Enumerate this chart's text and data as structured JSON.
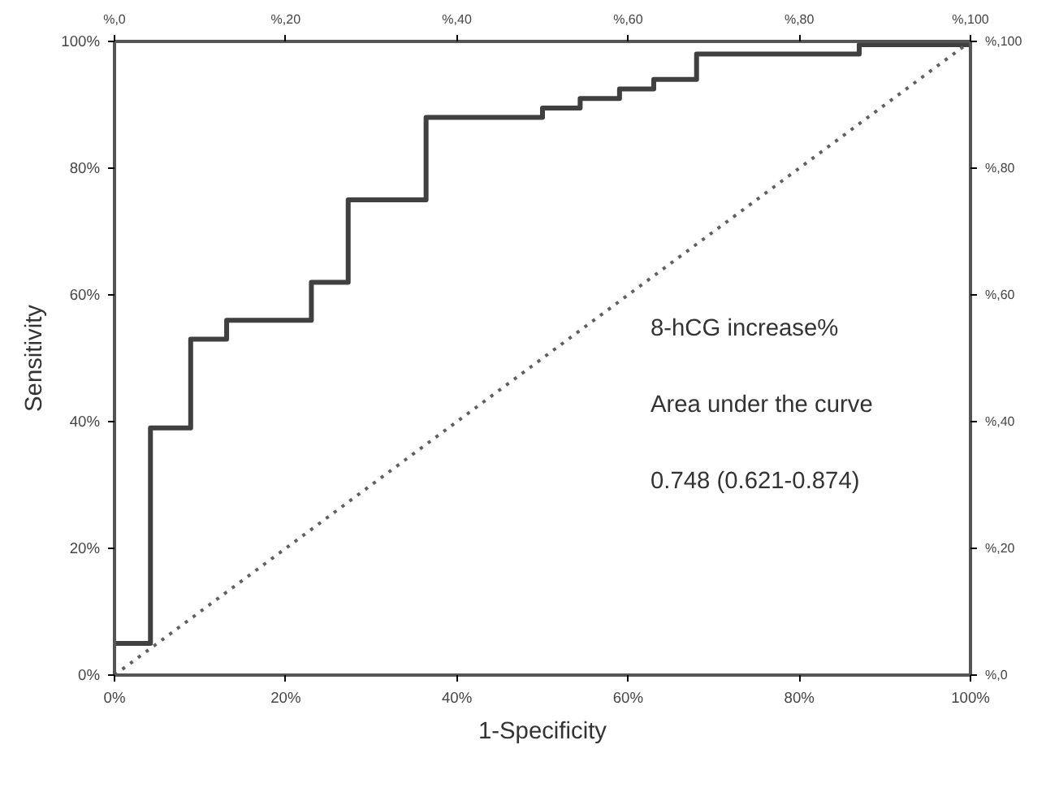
{
  "chart_data": {
    "type": "line",
    "xlabel": "1-Specificity",
    "ylabel": "Sensitivity",
    "series": [
      {
        "type": "step",
        "color": "#404040",
        "line_style": "solid",
        "x": [
          0,
          4.2,
          8.9,
          13.1,
          23,
          27.3,
          36.4,
          50,
          54.4,
          59,
          63,
          68,
          87,
          100
        ],
        "values": [
          5,
          39,
          53,
          56,
          62,
          75,
          88,
          89.5,
          91,
          92.5,
          94,
          98,
          99.5,
          100
        ]
      },
      {
        "color": "#606060",
        "line_style": "dotted",
        "x": [
          0,
          100
        ],
        "values": [
          0,
          100
        ]
      }
    ],
    "xlim": [
      0,
      100
    ],
    "ylim": [
      0,
      100
    ],
    "xticks": [
      {
        "value": 0,
        "label": "0%"
      },
      {
        "value": 20,
        "label": "20%"
      },
      {
        "value": 40,
        "label": "40%"
      },
      {
        "value": 60,
        "label": "60%"
      },
      {
        "value": 80,
        "label": "80%"
      },
      {
        "value": 100,
        "label": "100%"
      }
    ],
    "yticks": [
      {
        "value": 0,
        "label": "0%"
      },
      {
        "value": 20,
        "label": "20%"
      },
      {
        "value": 40,
        "label": "40%"
      },
      {
        "value": 60,
        "label": "60%"
      },
      {
        "value": 80,
        "label": "80%"
      },
      {
        "value": 100,
        "label": "100%"
      }
    ],
    "x2lim": [
      0,
      100
    ],
    "x2ticks": [
      {
        "value": 0,
        "label": "%,0"
      },
      {
        "value": 20,
        "label": "%,20"
      },
      {
        "value": 40,
        "label": "%,40"
      },
      {
        "value": 60,
        "label": "%,60"
      },
      {
        "value": 80,
        "label": "%,80"
      },
      {
        "value": 100,
        "label": "%,100"
      }
    ],
    "y2lim": [
      0,
      100
    ],
    "y2ticks": [
      {
        "value": 0,
        "label": "%,0"
      },
      {
        "value": 20,
        "label": "%,20"
      },
      {
        "value": 40,
        "label": "%,40"
      },
      {
        "value": 60,
        "label": "%,60"
      },
      {
        "value": 80,
        "label": "%,80"
      },
      {
        "value": 100,
        "label": "%,100"
      }
    ],
    "annotations": [
      "8-hCG increase%",
      "Area under the curve",
      "0.748 (0.621-0.874)"
    ],
    "grid": false,
    "marker": "none"
  }
}
